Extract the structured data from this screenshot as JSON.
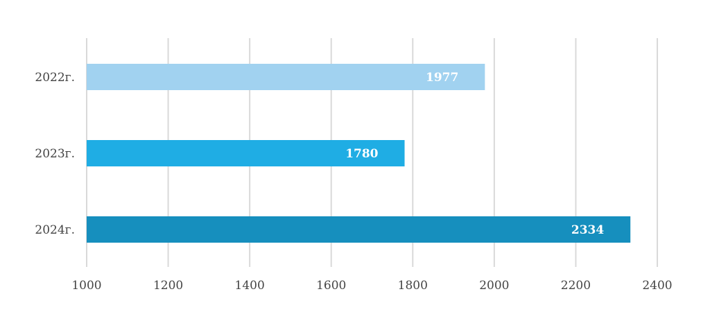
{
  "chart_data": {
    "type": "bar",
    "orientation": "horizontal",
    "categories": [
      "2022г.",
      "2023г.",
      "2024г."
    ],
    "values": [
      1977,
      1780,
      2334
    ],
    "colors": [
      "#a1d2f0",
      "#1fade4",
      "#168fbe"
    ],
    "xlim": [
      1000,
      2400
    ],
    "xticks": [
      1000,
      1200,
      1400,
      1600,
      1800,
      2000,
      2200,
      2400
    ],
    "xtick_labels": [
      "1000",
      "1200",
      "1400",
      "1600",
      "1800",
      "2000",
      "2200",
      "2400"
    ],
    "value_labels": [
      "1977",
      "1780",
      "2334"
    ],
    "grid": true,
    "legend": "none",
    "title": "",
    "xlabel": "",
    "ylabel": ""
  }
}
